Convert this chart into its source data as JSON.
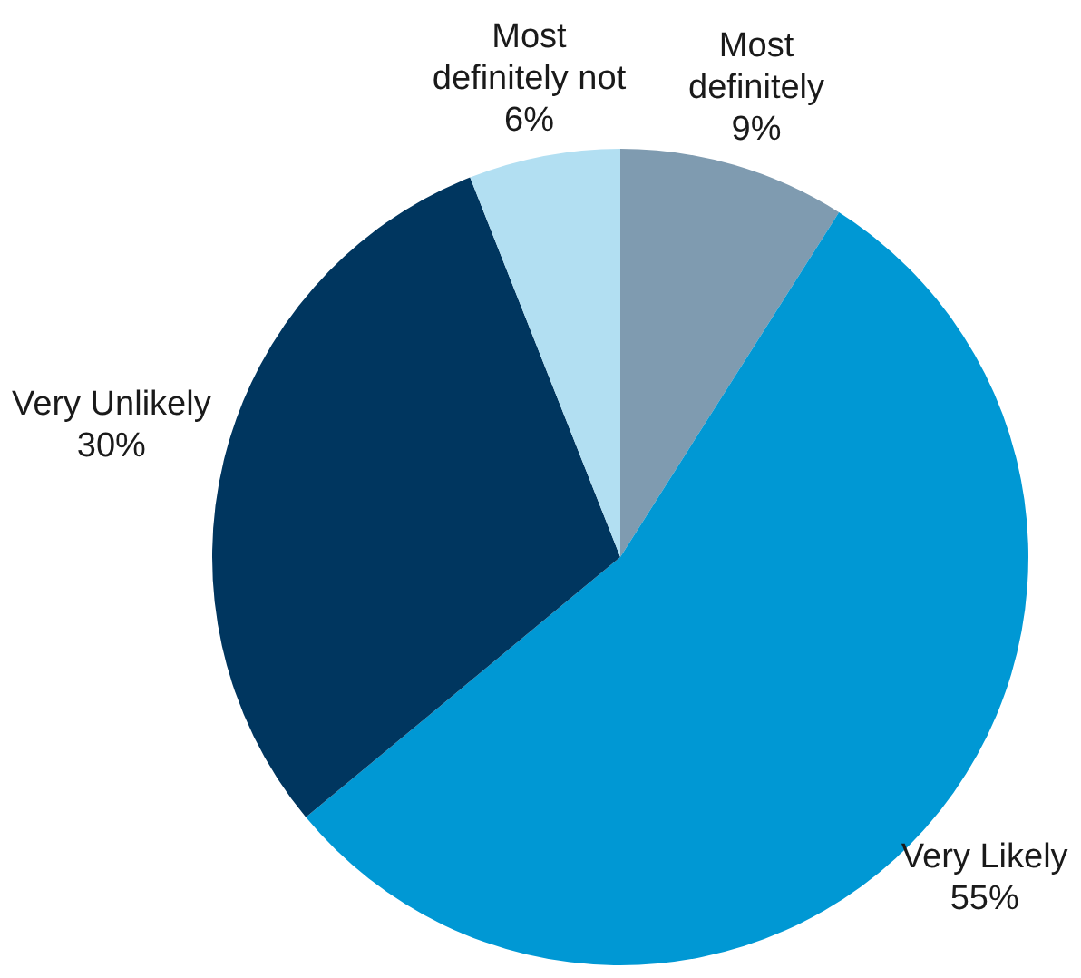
{
  "chart_data": {
    "type": "pie",
    "categories": [
      "Most definitely",
      "Very Likely",
      "Very Unlikely",
      "Most definitely not"
    ],
    "values": [
      9,
      55,
      30,
      6
    ],
    "value_labels": [
      "9%",
      "55%",
      "30%",
      "6%"
    ],
    "colors": [
      "#7f9bb0",
      "#0098d4",
      "#00365f",
      "#b2dff2"
    ]
  }
}
